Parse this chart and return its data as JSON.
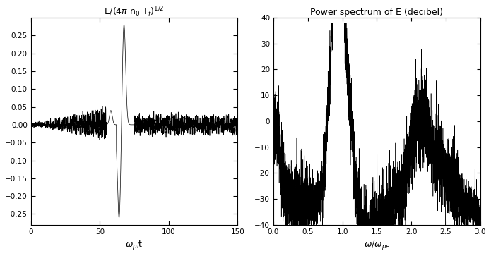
{
  "right_title": "Power spectrum of E (decibel)",
  "left_xlim": [
    0,
    150
  ],
  "left_ylim": [
    -0.28,
    0.3
  ],
  "left_yticks": [
    -0.25,
    -0.2,
    -0.15,
    -0.1,
    -0.05,
    0,
    0.05,
    0.1,
    0.15,
    0.2,
    0.25
  ],
  "left_xticks": [
    0,
    50,
    100,
    150
  ],
  "right_xlim": [
    0,
    3
  ],
  "right_ylim": [
    -40,
    40
  ],
  "right_yticks": [
    -40,
    -30,
    -20,
    -10,
    0,
    10,
    20,
    30,
    40
  ],
  "right_xticks": [
    0,
    0.5,
    1.0,
    1.5,
    2.0,
    2.5,
    3.0
  ],
  "background_color": "#ffffff",
  "line_color": "#000000",
  "seed": 42
}
